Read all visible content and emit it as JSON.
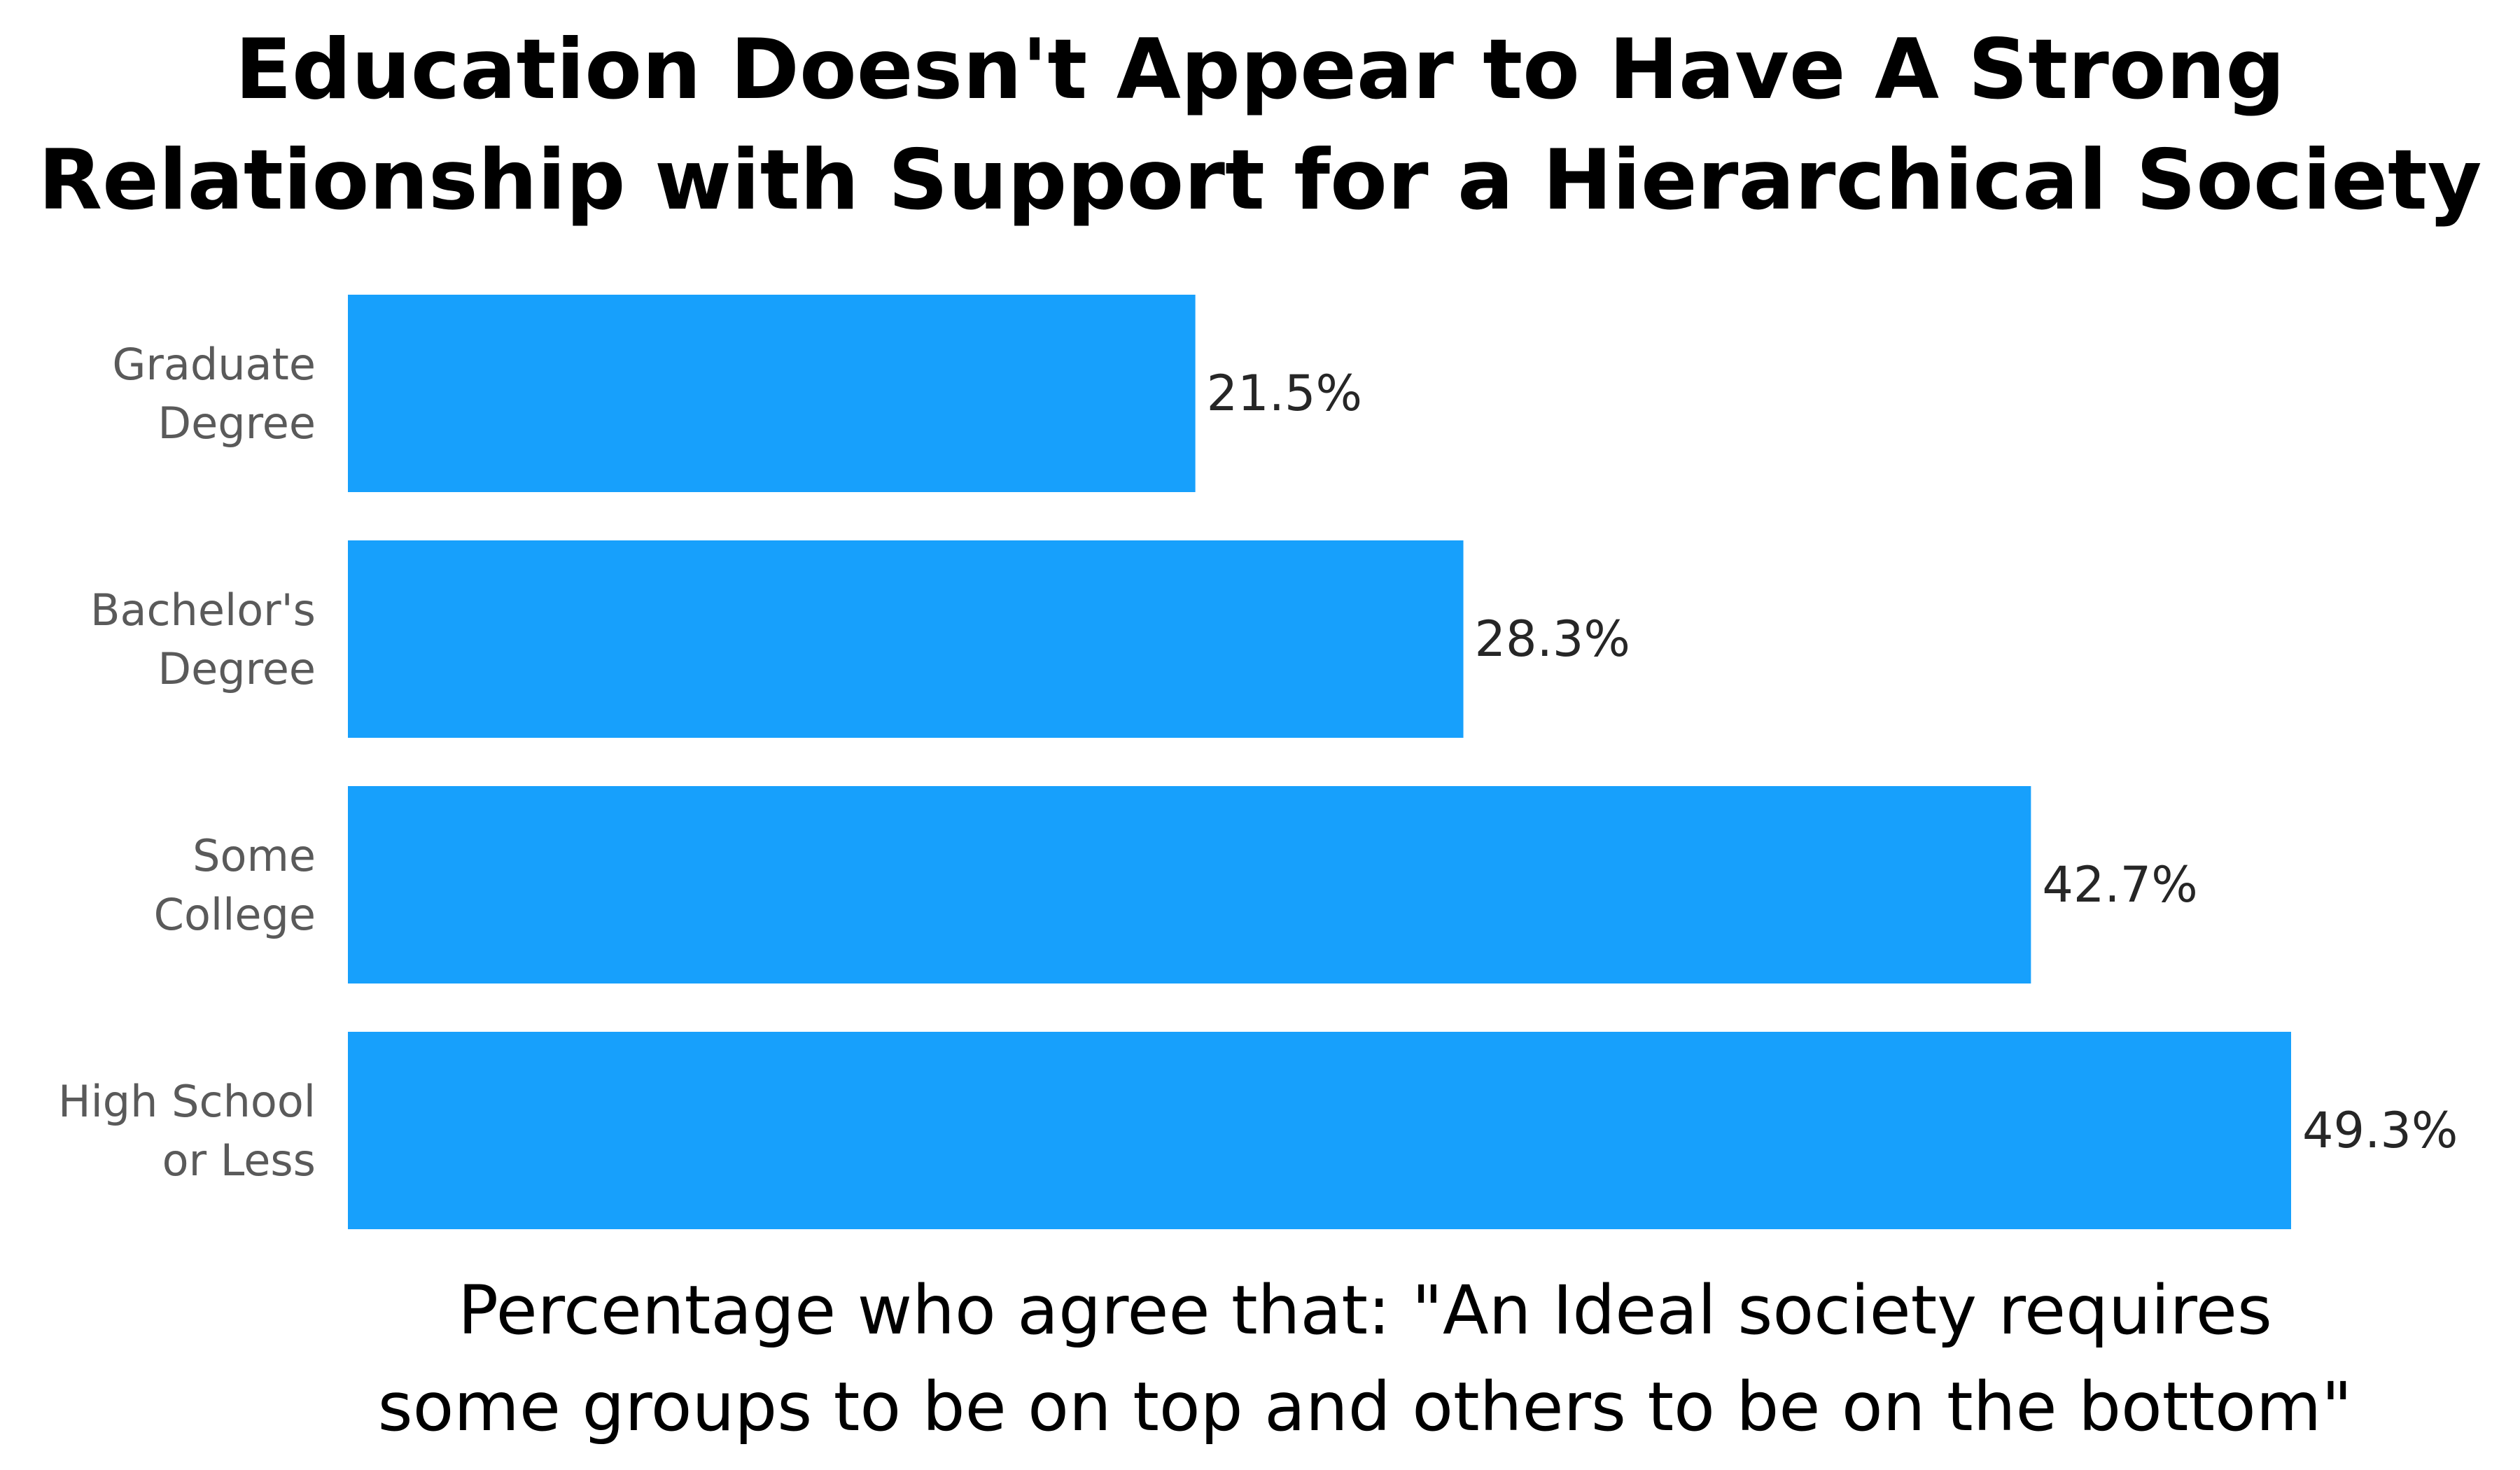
{
  "chart_data": {
    "type": "bar",
    "orientation": "horizontal",
    "title": [
      "Education Doesn't Appear to Have A Strong",
      "Relationship with Support for a Hierarchical Society"
    ],
    "categories": [
      [
        "Graduate",
        "Degree"
      ],
      [
        "Bachelor's",
        "Degree"
      ],
      [
        "Some",
        "College"
      ],
      [
        "High School",
        "or Less"
      ]
    ],
    "values": [
      21.5,
      28.3,
      42.7,
      49.3
    ],
    "value_labels": [
      "21.5%",
      "28.3%",
      "42.7%",
      "49.3%"
    ],
    "xlabel": [
      "Percentage who agree that: \"An Ideal society requires",
      "some groups to be on top and others to be on the bottom\""
    ],
    "ylabel": "",
    "xlim": [
      0,
      49.3
    ],
    "bar_color": "#17a0fc",
    "grid": false,
    "legend": "none"
  }
}
